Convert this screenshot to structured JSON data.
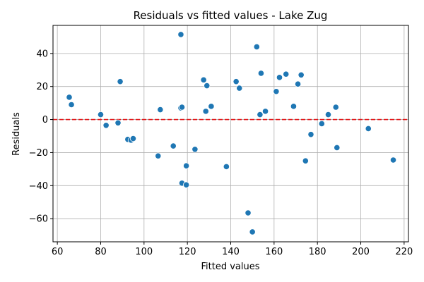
{
  "chart_data": {
    "type": "scatter",
    "title": "Residuals vs fitted values - Lake Zug",
    "xlabel": "Fitted values",
    "ylabel": "Residuals",
    "xlim": [
      58,
      222
    ],
    "ylim": [
      -74,
      57
    ],
    "xticks": [
      60,
      80,
      100,
      120,
      140,
      160,
      180,
      200,
      220
    ],
    "yticks": [
      -60,
      -40,
      -20,
      0,
      20,
      40
    ],
    "grid": true,
    "reference_line": {
      "y": 0,
      "color": "#e41a1c",
      "style": "dashed"
    },
    "marker_color": "#1f77b4",
    "points": [
      {
        "x": 65.5,
        "y": 13.5
      },
      {
        "x": 66.5,
        "y": 9
      },
      {
        "x": 80,
        "y": 3
      },
      {
        "x": 82.5,
        "y": -3.5
      },
      {
        "x": 88,
        "y": -2
      },
      {
        "x": 89,
        "y": 23
      },
      {
        "x": 92.5,
        "y": -12
      },
      {
        "x": 94,
        "y": -12.5
      },
      {
        "x": 95,
        "y": -11.5
      },
      {
        "x": 106.5,
        "y": -22
      },
      {
        "x": 107.5,
        "y": 6
      },
      {
        "x": 113.5,
        "y": -16
      },
      {
        "x": 117,
        "y": 7
      },
      {
        "x": 117.5,
        "y": 7.5
      },
      {
        "x": 117,
        "y": 51.5
      },
      {
        "x": 117.5,
        "y": -38.5
      },
      {
        "x": 119.5,
        "y": -28
      },
      {
        "x": 119.5,
        "y": -39.5
      },
      {
        "x": 123.5,
        "y": -18
      },
      {
        "x": 127.5,
        "y": 24
      },
      {
        "x": 128.5,
        "y": 5
      },
      {
        "x": 129,
        "y": 20.5
      },
      {
        "x": 131,
        "y": 8
      },
      {
        "x": 138,
        "y": -28.5
      },
      {
        "x": 142.5,
        "y": 23
      },
      {
        "x": 144,
        "y": 19
      },
      {
        "x": 148,
        "y": -56.5
      },
      {
        "x": 150,
        "y": -68
      },
      {
        "x": 152,
        "y": 44
      },
      {
        "x": 153.5,
        "y": 3
      },
      {
        "x": 154,
        "y": 28
      },
      {
        "x": 156,
        "y": 5
      },
      {
        "x": 161,
        "y": 17
      },
      {
        "x": 162.5,
        "y": 25.5
      },
      {
        "x": 165.5,
        "y": 27.5
      },
      {
        "x": 169,
        "y": 8
      },
      {
        "x": 171,
        "y": 21.5
      },
      {
        "x": 172.5,
        "y": 27
      },
      {
        "x": 174.5,
        "y": -25
      },
      {
        "x": 177,
        "y": -9
      },
      {
        "x": 182,
        "y": -2.5
      },
      {
        "x": 185,
        "y": 3
      },
      {
        "x": 188.5,
        "y": 7.5
      },
      {
        "x": 189,
        "y": -17
      },
      {
        "x": 203.5,
        "y": -5.5
      },
      {
        "x": 215,
        "y": -24.5
      }
    ]
  }
}
